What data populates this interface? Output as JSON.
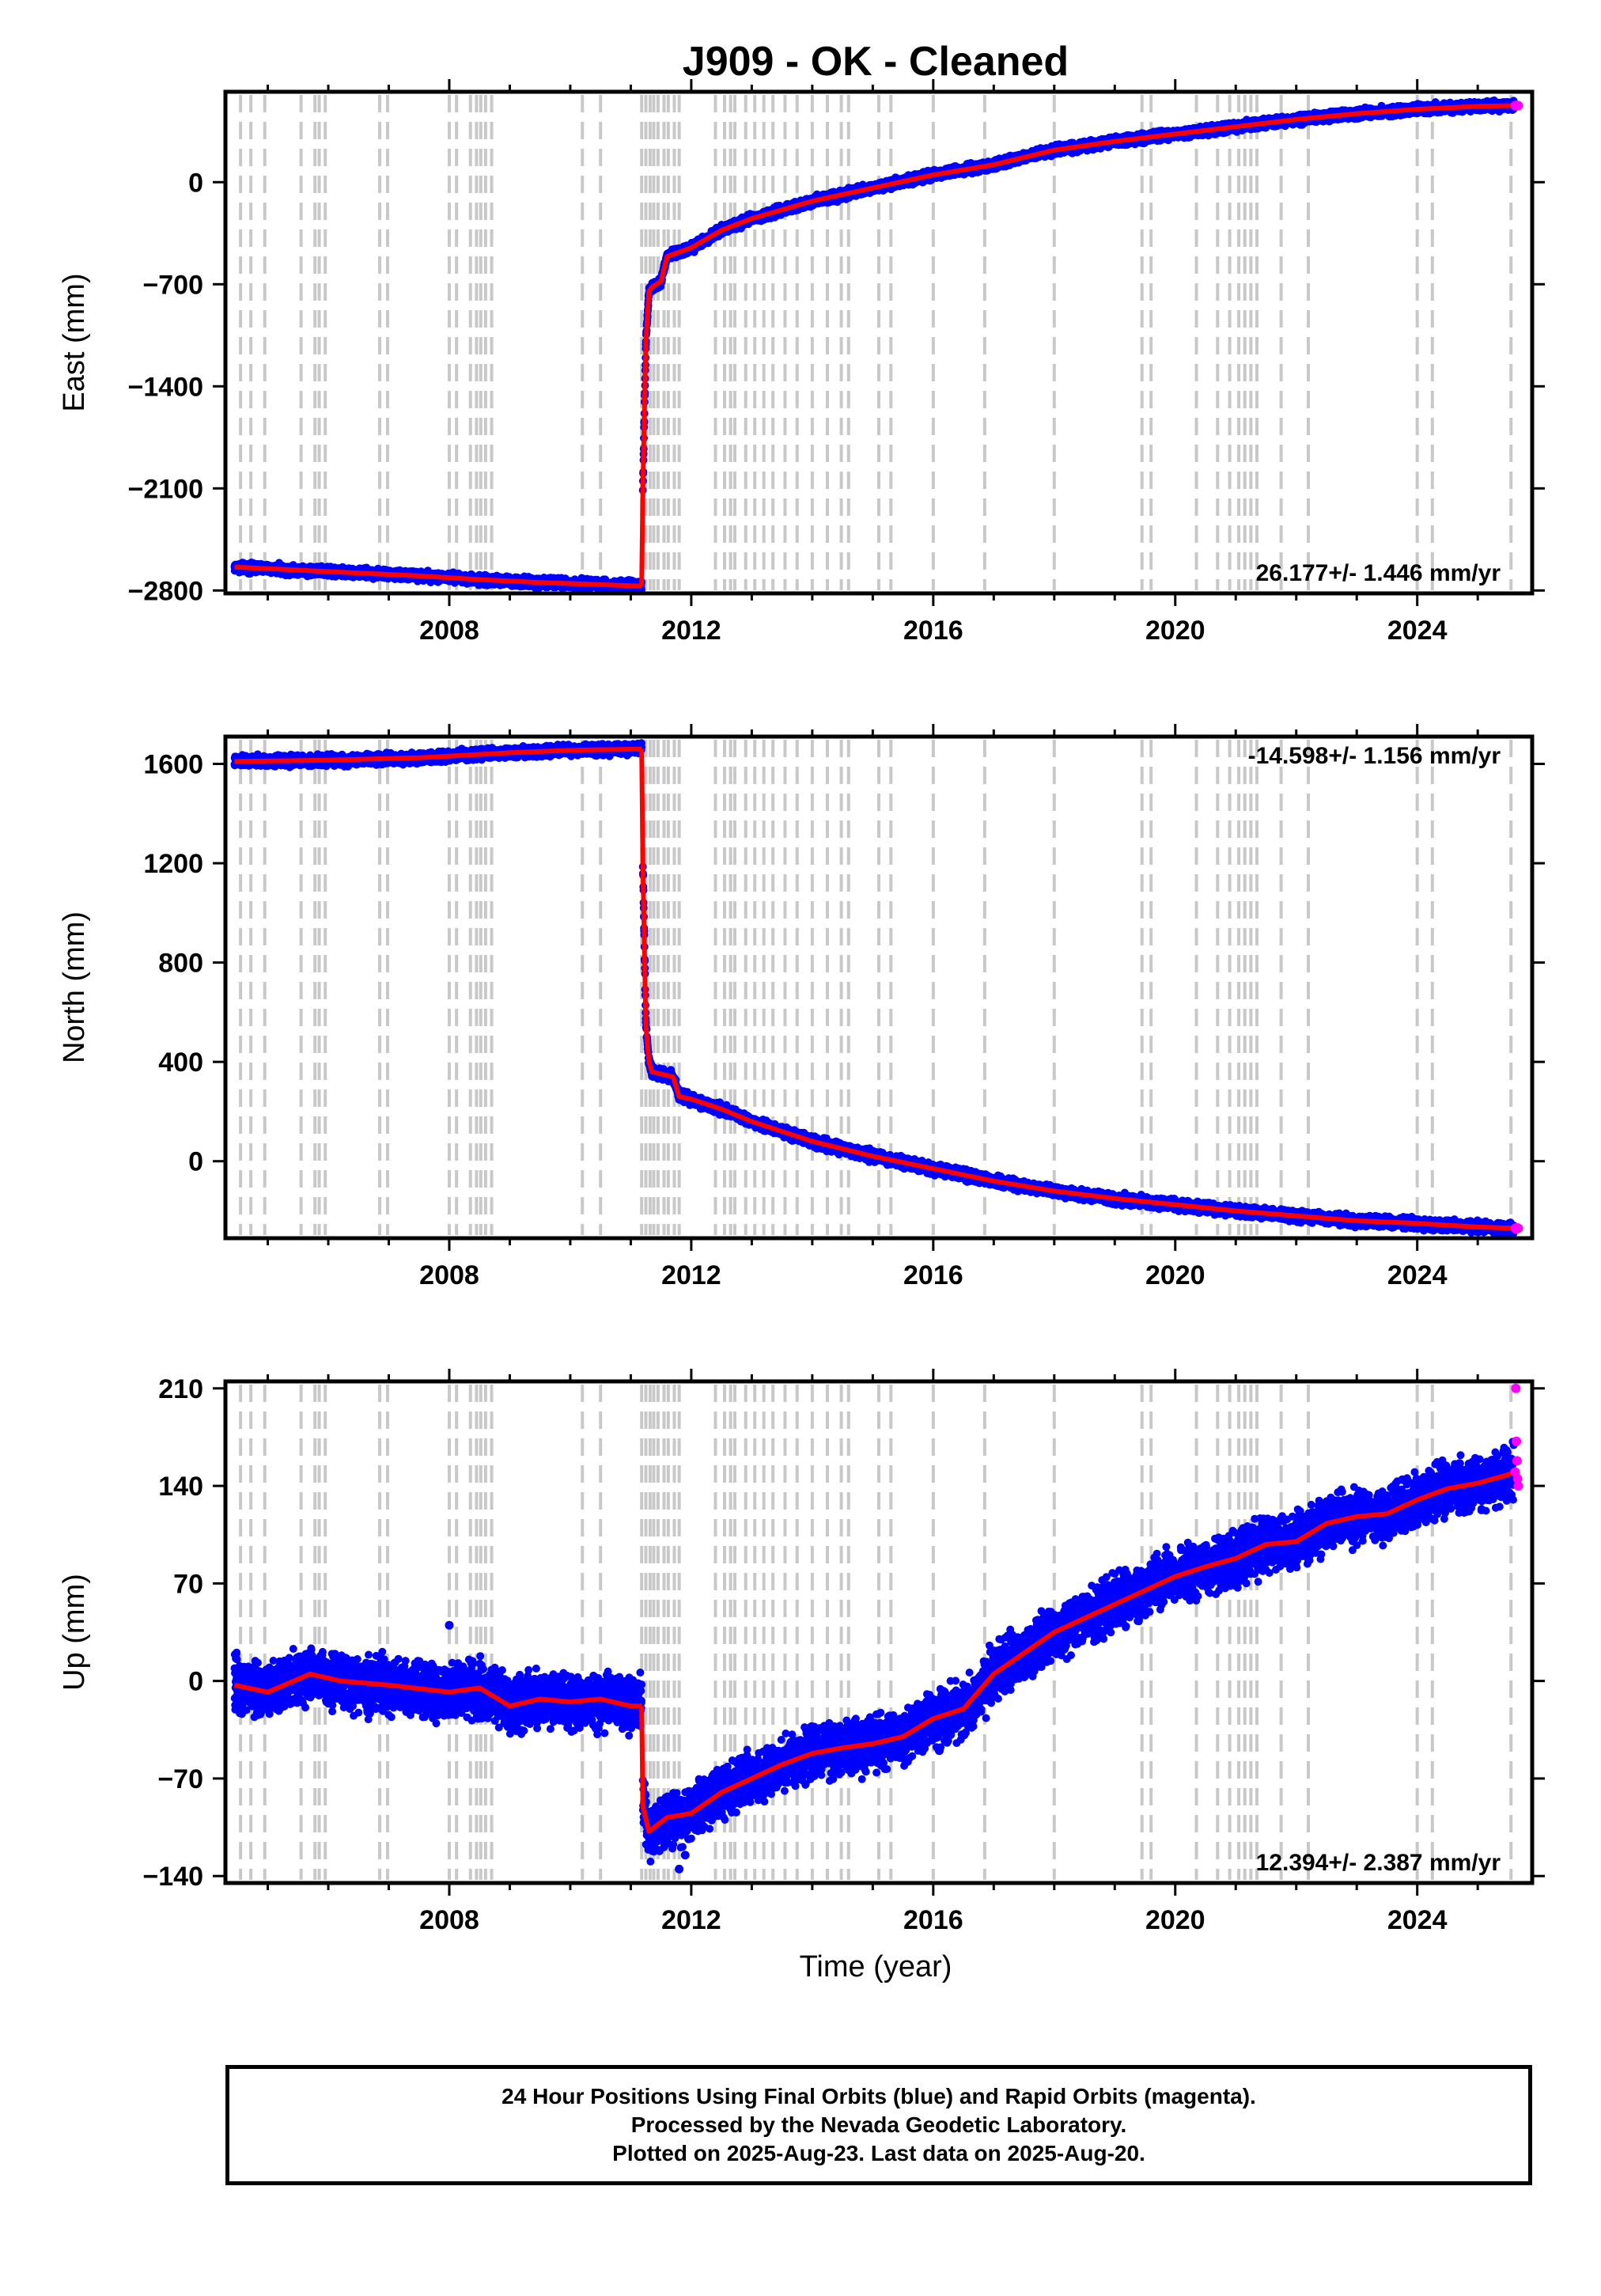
{
  "title": "J909  - OK - Cleaned",
  "xlabel": "Time (year)",
  "footer": {
    "line1": "24 Hour Positions Using Final Orbits (blue) and Rapid Orbits (magenta).",
    "line2": "Processed by the Nevada Geodetic Laboratory.",
    "line3": "Plotted on 2025-Aug-23. Last data on 2025-Aug-20."
  },
  "colors": {
    "final": "#0000ff",
    "rapid": "#ff00ff",
    "model": "#ff0000",
    "event_lines": "#c8c8c8"
  },
  "chart_data": [
    {
      "type": "scatter",
      "component": "East",
      "ylabel": "East (mm)",
      "rate_label": "26.177+/- 1.446 mm/yr",
      "rate_placement": "bottom-right",
      "xlim": [
        2004.3,
        2025.9
      ],
      "ylim": [
        -2820,
        620
      ],
      "yticks": [
        -2800,
        -2100,
        -1400,
        -700,
        0
      ],
      "xticks": [
        2008,
        2012,
        2016,
        2020,
        2024
      ],
      "series": [
        {
          "points": [
            [
              2004.45,
              -2640
            ],
            [
              2005.5,
              -2660
            ],
            [
              2006.5,
              -2680
            ],
            [
              2007.5,
              -2700
            ],
            [
              2008.5,
              -2725
            ],
            [
              2009.5,
              -2745
            ],
            [
              2010.5,
              -2760
            ],
            [
              2011.18,
              -2770
            ]
          ]
        },
        {
          "points": [
            [
              2011.2,
              -2100
            ],
            [
              2011.25,
              -1100
            ],
            [
              2011.3,
              -750
            ],
            [
              2011.35,
              -720
            ],
            [
              2011.5,
              -680
            ],
            [
              2011.6,
              -510
            ],
            [
              2012.0,
              -450
            ],
            [
              2012.5,
              -330
            ],
            [
              2013.0,
              -250
            ],
            [
              2014.0,
              -130
            ],
            [
              2015.0,
              -40
            ],
            [
              2016.0,
              50
            ],
            [
              2017.0,
              120
            ],
            [
              2018.0,
              220
            ],
            [
              2019.0,
              280
            ],
            [
              2020.0,
              330
            ],
            [
              2021.0,
              380
            ],
            [
              2022.0,
              430
            ],
            [
              2023.0,
              470
            ],
            [
              2024.0,
              500
            ],
            [
              2025.0,
              520
            ],
            [
              2025.6,
              525
            ]
          ]
        }
      ],
      "noise_mm": 15
    },
    {
      "type": "scatter",
      "component": "North",
      "ylabel": "North (mm)",
      "rate_label": "-14.598+/- 1.156 mm/yr",
      "rate_placement": "top-right",
      "xlim": [
        2004.3,
        2025.9
      ],
      "ylim": [
        -310,
        1710
      ],
      "yticks": [
        0,
        400,
        800,
        1200,
        1600
      ],
      "xticks": [
        2008,
        2012,
        2016,
        2020,
        2024
      ],
      "series": [
        {
          "points": [
            [
              2004.45,
              1610
            ],
            [
              2006.0,
              1615
            ],
            [
              2007.5,
              1625
            ],
            [
              2009.0,
              1645
            ],
            [
              2010.0,
              1655
            ],
            [
              2011.18,
              1660
            ]
          ]
        },
        {
          "points": [
            [
              2011.2,
              1200
            ],
            [
              2011.25,
              550
            ],
            [
              2011.3,
              400
            ],
            [
              2011.35,
              360
            ],
            [
              2011.7,
              340
            ],
            [
              2011.8,
              260
            ],
            [
              2012.0,
              250
            ],
            [
              2012.5,
              210
            ],
            [
              2013.0,
              160
            ],
            [
              2014.0,
              80
            ],
            [
              2015.0,
              20
            ],
            [
              2016.0,
              -30
            ],
            [
              2017.0,
              -80
            ],
            [
              2018.0,
              -120
            ],
            [
              2019.0,
              -150
            ],
            [
              2020.0,
              -175
            ],
            [
              2021.0,
              -200
            ],
            [
              2022.0,
              -220
            ],
            [
              2023.0,
              -240
            ],
            [
              2024.0,
              -250
            ],
            [
              2025.0,
              -265
            ],
            [
              2025.6,
              -270
            ]
          ]
        }
      ],
      "noise_mm": 10
    },
    {
      "type": "scatter",
      "component": "Up",
      "ylabel": "Up (mm)",
      "rate_label": "12.394+/- 2.387 mm/yr",
      "rate_placement": "bottom-right",
      "xlim": [
        2004.3,
        2025.9
      ],
      "ylim": [
        -145,
        215
      ],
      "yticks": [
        -140,
        -70,
        0,
        70,
        140,
        210
      ],
      "xticks": [
        2008,
        2012,
        2016,
        2020,
        2024
      ],
      "series": [
        {
          "points": [
            [
              2004.45,
              -3
            ],
            [
              2005.0,
              -8
            ],
            [
              2005.7,
              5
            ],
            [
              2006.2,
              0
            ],
            [
              2007.0,
              -3
            ],
            [
              2008.0,
              -8
            ],
            [
              2008.5,
              -5
            ],
            [
              2009.0,
              -18
            ],
            [
              2009.5,
              -13
            ],
            [
              2010.0,
              -15
            ],
            [
              2010.5,
              -13
            ],
            [
              2011.0,
              -18
            ],
            [
              2011.18,
              -18
            ]
          ]
        },
        {
          "points": [
            [
              2011.2,
              -90
            ],
            [
              2011.3,
              -108
            ],
            [
              2011.6,
              -98
            ],
            [
              2012.0,
              -95
            ],
            [
              2012.5,
              -80
            ],
            [
              2013.0,
              -70
            ],
            [
              2013.5,
              -60
            ],
            [
              2014.0,
              -52
            ],
            [
              2014.5,
              -48
            ],
            [
              2015.0,
              -45
            ],
            [
              2015.5,
              -40
            ],
            [
              2016.0,
              -27
            ],
            [
              2016.5,
              -20
            ],
            [
              2017.0,
              5
            ],
            [
              2017.5,
              20
            ],
            [
              2018.0,
              35
            ],
            [
              2018.5,
              45
            ],
            [
              2019.0,
              55
            ],
            [
              2019.5,
              65
            ],
            [
              2020.0,
              75
            ],
            [
              2020.5,
              82
            ],
            [
              2021.0,
              88
            ],
            [
              2021.5,
              98
            ],
            [
              2022.0,
              100
            ],
            [
              2022.5,
              113
            ],
            [
              2023.0,
              118
            ],
            [
              2023.5,
              120
            ],
            [
              2024.0,
              130
            ],
            [
              2024.5,
              138
            ],
            [
              2025.0,
              142
            ],
            [
              2025.5,
              148
            ],
            [
              2025.6,
              150
            ]
          ]
        }
      ],
      "noise_mm": 9,
      "outliers": [
        [
          2008.0,
          40
        ],
        [
          2011.8,
          -135
        ],
        [
          2011.9,
          -125
        ],
        [
          2016.1,
          -50
        ]
      ]
    }
  ],
  "event_lines": [
    2004.55,
    2004.72,
    2004.95,
    2005.55,
    2005.78,
    2005.85,
    2005.95,
    2006.85,
    2006.98,
    2008.0,
    2008.12,
    2008.35,
    2008.45,
    2008.52,
    2008.6,
    2008.7,
    2010.2,
    2010.5,
    2011.18,
    2011.25,
    2011.32,
    2011.38,
    2011.45,
    2011.55,
    2011.62,
    2011.72,
    2011.8,
    2012.4,
    2012.55,
    2012.65,
    2012.72,
    2012.9,
    2013.05,
    2013.2,
    2013.35,
    2013.55,
    2013.75,
    2014.0,
    2014.25,
    2014.48,
    2014.6,
    2015.1,
    2015.3,
    2016.0,
    2016.85,
    2018.0,
    2019.45,
    2019.6,
    2020.35,
    2020.7,
    2020.9,
    2021.05,
    2021.15,
    2021.25,
    2021.35,
    2021.75,
    2022.2,
    2024.0,
    2024.25,
    2025.55
  ],
  "rapid_points": [
    [
      2025.62,
      525,
      -270,
      150
    ],
    [
      2025.63,
      527,
      -272,
      210
    ],
    [
      2025.64,
      523,
      -268,
      172
    ],
    [
      2025.65,
      526,
      -271,
      158
    ],
    [
      2025.66,
      524,
      -269,
      145
    ],
    [
      2025.67,
      525,
      -270,
      140
    ]
  ]
}
